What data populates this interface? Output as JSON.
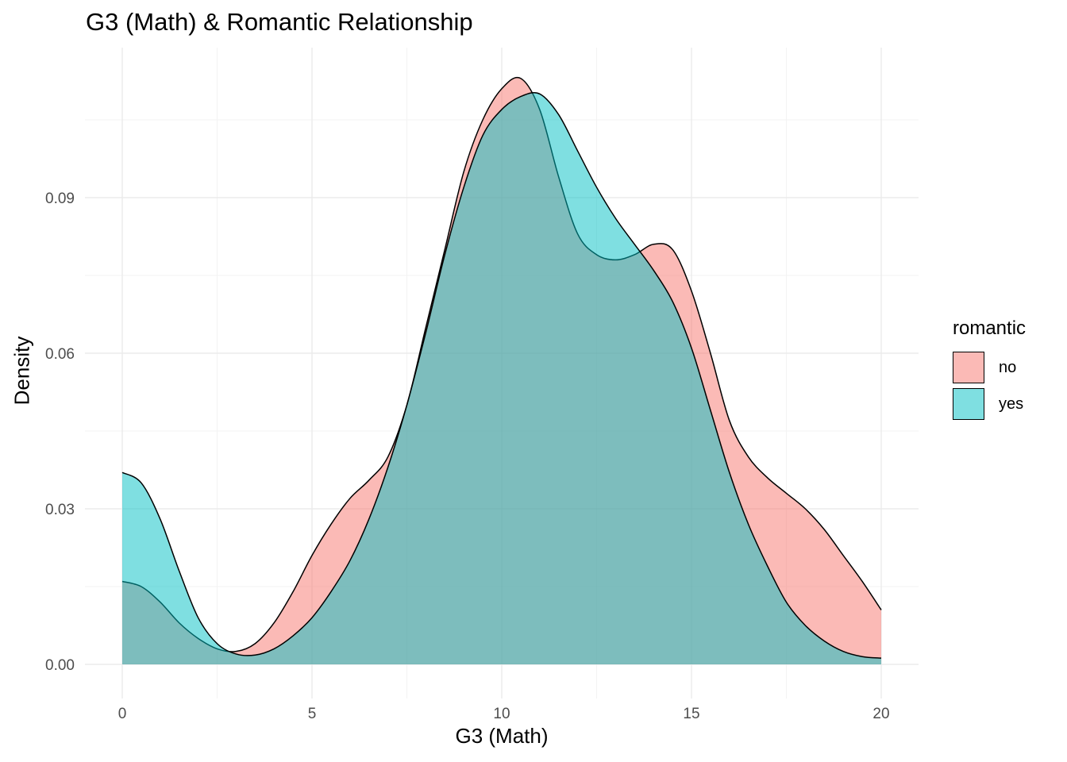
{
  "chart_data": {
    "type": "area",
    "title": "G3 (Math) & Romantic Relationship",
    "xlabel": "G3 (Math)",
    "ylabel": "Density",
    "xlim": [
      0,
      20
    ],
    "ylim": [
      0,
      0.11
    ],
    "x_ticks": [
      0,
      5,
      10,
      15,
      20
    ],
    "y_ticks": [
      0.0,
      0.03,
      0.06,
      0.09
    ],
    "y_tick_labels": [
      "0.00",
      "0.03",
      "0.06",
      "0.09"
    ],
    "grid": true,
    "legend": {
      "title": "romantic",
      "position": "right"
    },
    "series": [
      {
        "name": "no",
        "color": "#F8766D",
        "x": [
          0,
          0.5,
          1,
          1.5,
          2,
          2.5,
          3,
          3.5,
          4,
          4.5,
          5,
          5.5,
          6,
          6.5,
          7,
          7.5,
          8,
          8.5,
          9,
          9.5,
          10,
          10.5,
          11,
          11.5,
          12,
          12.5,
          13,
          13.5,
          14,
          14.5,
          15,
          15.5,
          16,
          16.5,
          17,
          17.5,
          18,
          18.5,
          19,
          19.5,
          20
        ],
        "values": [
          0.016,
          0.015,
          0.012,
          0.008,
          0.005,
          0.003,
          0.0025,
          0.004,
          0.008,
          0.014,
          0.021,
          0.027,
          0.032,
          0.0355,
          0.04,
          0.05,
          0.065,
          0.08,
          0.095,
          0.105,
          0.111,
          0.113,
          0.107,
          0.094,
          0.083,
          0.079,
          0.078,
          0.079,
          0.081,
          0.08,
          0.072,
          0.06,
          0.047,
          0.04,
          0.036,
          0.033,
          0.03,
          0.026,
          0.021,
          0.016,
          0.0105
        ]
      },
      {
        "name": "yes",
        "color": "#00BFC4",
        "x": [
          0,
          0.5,
          1,
          1.5,
          2,
          2.5,
          3,
          3.5,
          4,
          4.5,
          5,
          5.5,
          6,
          6.5,
          7,
          7.5,
          8,
          8.5,
          9,
          9.5,
          10,
          10.5,
          11,
          11.5,
          12,
          12.5,
          13,
          13.5,
          14,
          14.5,
          15,
          15.5,
          16,
          16.5,
          17,
          17.5,
          18,
          18.5,
          19,
          19.5,
          20
        ],
        "values": [
          0.037,
          0.035,
          0.028,
          0.018,
          0.009,
          0.004,
          0.002,
          0.0018,
          0.003,
          0.0055,
          0.009,
          0.014,
          0.02,
          0.028,
          0.038,
          0.05,
          0.064,
          0.079,
          0.092,
          0.102,
          0.107,
          0.1095,
          0.11,
          0.106,
          0.099,
          0.092,
          0.086,
          0.081,
          0.076,
          0.07,
          0.061,
          0.049,
          0.037,
          0.027,
          0.019,
          0.012,
          0.0075,
          0.0045,
          0.0025,
          0.0015,
          0.0012
        ]
      }
    ]
  }
}
